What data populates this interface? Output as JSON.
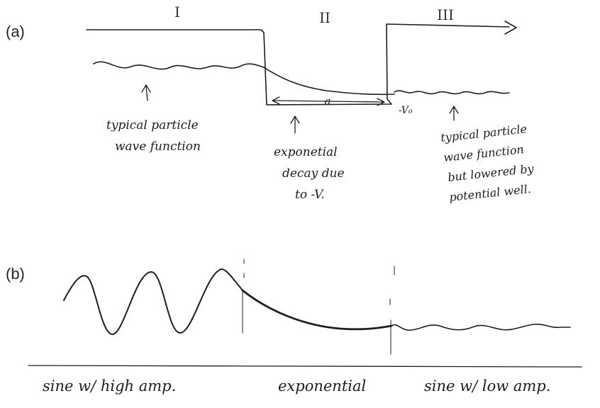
{
  "panel_a": {
    "label": "(a)",
    "regions": [
      "I",
      "II",
      "III"
    ],
    "well_width_label": "a",
    "well_depth_label": "-V₀",
    "annotations": {
      "region1": [
        "typical particle",
        "wave function"
      ],
      "region2": [
        "exponetial",
        "decay due",
        "to -V."
      ],
      "region3": [
        "typical particle",
        "wave function",
        "but lowered by",
        "potential well."
      ]
    }
  },
  "panel_b": {
    "label": "(b)",
    "captions": [
      "sine w/ high amp.",
      "exponential",
      "sine w/ low amp."
    ]
  }
}
